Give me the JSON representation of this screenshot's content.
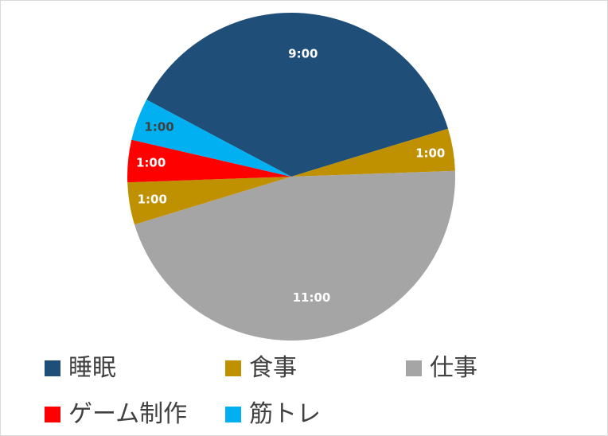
{
  "chart_data": {
    "type": "pie",
    "categories": [
      "睡眠",
      "食事",
      "仕事",
      "食事",
      "ゲーム制作",
      "筋トレ"
    ],
    "values": [
      9,
      1,
      11,
      1,
      1,
      1
    ],
    "data_labels": [
      "9:00",
      "1:00",
      "11:00",
      "1:00",
      "1:00",
      "1:00"
    ],
    "colors": [
      "#1f4e79",
      "#bf9000",
      "#a5a5a5",
      "#bf9000",
      "#ff0000",
      "#00b0f0"
    ],
    "label_colors": [
      "#ffffff",
      "#ffffff",
      "#ffffff",
      "#ffffff",
      "#ffffff",
      "#404040"
    ],
    "legend_position": "bottom",
    "legend": [
      {
        "label": "睡眠",
        "color": "#1f4e79"
      },
      {
        "label": "食事",
        "color": "#bf9000"
      },
      {
        "label": "仕事",
        "color": "#a5a5a5"
      },
      {
        "label": "ゲーム制作",
        "color": "#ff0000"
      },
      {
        "label": "筋トレ",
        "color": "#00b0f0"
      }
    ]
  }
}
